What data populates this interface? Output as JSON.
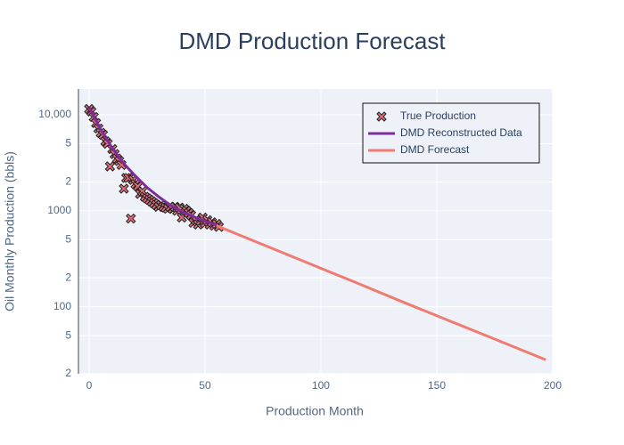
{
  "chart_data": {
    "type": "line",
    "title": "DMD Production Forecast",
    "x_label": "Production Month",
    "y_label": "Oil Monthly Production (bbls)",
    "log_y": true,
    "grid": true,
    "legend": "top-right",
    "xlim": [
      -4.6,
      200
    ],
    "xticks": [
      0,
      50,
      100,
      150,
      200
    ],
    "ylim": [
      20,
      18600
    ],
    "yticks": [
      {
        "value": 20,
        "label": "2"
      },
      {
        "value": 50,
        "label": "5"
      },
      100,
      {
        "value": 200,
        "label": "2"
      },
      {
        "value": 500,
        "label": "5"
      },
      1000,
      {
        "value": 2000,
        "label": "2"
      },
      {
        "value": 5000,
        "label": "5"
      },
      {
        "value": 10000,
        "label": "10,000"
      }
    ],
    "series": [
      {
        "name": "True Production",
        "mode": "markers",
        "color": "#e0707a",
        "x": [
          0,
          1,
          2,
          3,
          4,
          5,
          6,
          7,
          8,
          9,
          10,
          11,
          12,
          13,
          14,
          15,
          16,
          17,
          18,
          19,
          20,
          21,
          22,
          23,
          24,
          25,
          26,
          27,
          28,
          29,
          30,
          31,
          32,
          33,
          34,
          35,
          36,
          37,
          38,
          39,
          40,
          41,
          42,
          43,
          44,
          45,
          46,
          47,
          48,
          49,
          50,
          51,
          52,
          53,
          54,
          55,
          56
        ],
        "values": [
          11500,
          10800,
          9500,
          8200,
          7200,
          6500,
          6200,
          5300,
          5000,
          2900,
          4400,
          3900,
          3500,
          3300,
          3000,
          1700,
          2200,
          2200,
          830,
          2100,
          1900,
          1800,
          1500,
          1600,
          1400,
          1350,
          1300,
          1250,
          1200,
          1150,
          1100,
          1150,
          1100,
          1080,
          1050,
          1100,
          1050,
          1100,
          1000,
          1080,
          850,
          1050,
          1000,
          950,
          900,
          750,
          800,
          720,
          780,
          850,
          740,
          800,
          720,
          760,
          700,
          730,
          680
        ]
      },
      {
        "name": "DMD Reconstructed Data",
        "mode": "lines",
        "color": "#7e2c9c",
        "x": [
          0,
          5,
          10,
          15,
          20,
          25,
          30,
          35,
          40,
          45,
          50,
          55
        ],
        "values": [
          12000,
          7000,
          4500,
          3100,
          2300,
          1750,
          1400,
          1150,
          980,
          870,
          780,
          710
        ]
      },
      {
        "name": "DMD Forecast",
        "mode": "lines",
        "color": "#ef7b72",
        "x": [
          55,
          75,
          95,
          115,
          135,
          155,
          175,
          197
        ],
        "values": [
          700,
          444,
          282,
          179,
          113,
          72,
          46,
          28
        ]
      }
    ]
  }
}
